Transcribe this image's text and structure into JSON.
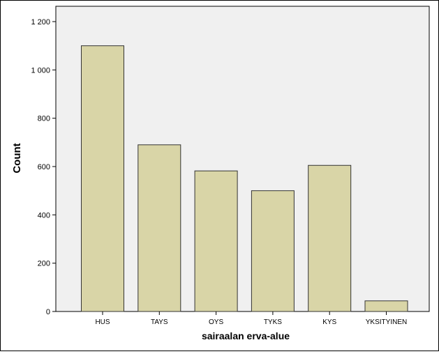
{
  "chart_data": {
    "type": "bar",
    "categories": [
      "HUS",
      "TAYS",
      "OYS",
      "TYKS",
      "KYS",
      "YKSITYINEN"
    ],
    "values": [
      1100,
      690,
      582,
      500,
      605,
      44
    ],
    "xlabel": "sairaalan erva-alue",
    "ylabel": "Count",
    "ylim": [
      0,
      1200
    ],
    "yticks": [
      0,
      200,
      400,
      600,
      800,
      1000,
      1200
    ],
    "ytick_labels": [
      "0",
      "200",
      "400",
      "600",
      "800",
      "1 000",
      "1 200"
    ],
    "grid": false,
    "legend": "none",
    "colors": {
      "bar_fill": "#d9d5a7",
      "bar_stroke": "#333333",
      "plot_background": "#f0f0f0",
      "axis": "#000000"
    }
  }
}
